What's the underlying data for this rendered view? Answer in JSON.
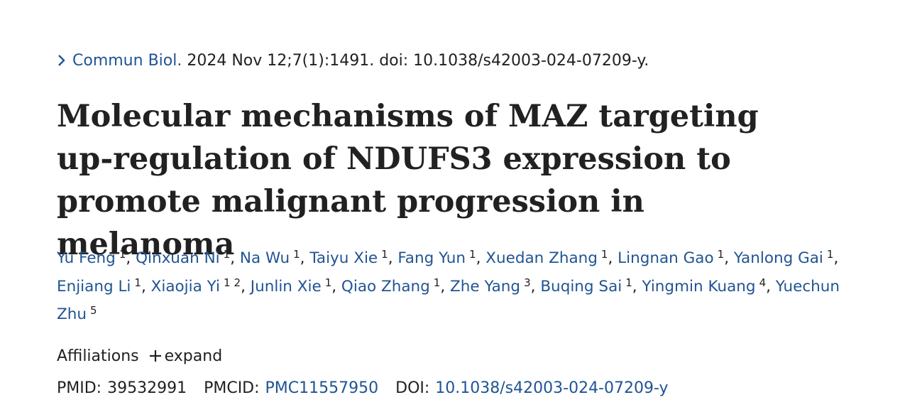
{
  "citation": {
    "journal": "Commun Biol.",
    "details": "2024 Nov 12;7(1):1491. doi: 10.1038/s42003-024-07209-y."
  },
  "title": "Molecular mechanisms of MAZ targeting up-regulation of NDUFS3 expression to promote malignant progression in melanoma",
  "author_separator": ",",
  "authors": [
    {
      "name": "Yu Feng",
      "affiliations": [
        1
      ]
    },
    {
      "name": "Qinxuan Ni",
      "affiliations": [
        1
      ]
    },
    {
      "name": "Na Wu",
      "affiliations": [
        1
      ]
    },
    {
      "name": "Taiyu Xie",
      "affiliations": [
        1
      ]
    },
    {
      "name": "Fang Yun",
      "affiliations": [
        1
      ]
    },
    {
      "name": "Xuedan Zhang",
      "affiliations": [
        1
      ]
    },
    {
      "name": "Lingnan Gao",
      "affiliations": [
        1
      ]
    },
    {
      "name": "Yanlong Gai",
      "affiliations": [
        1
      ]
    },
    {
      "name": "Enjiang Li",
      "affiliations": [
        1
      ]
    },
    {
      "name": "Xiaojia Yi",
      "affiliations": [
        1,
        2
      ]
    },
    {
      "name": "Junlin Xie",
      "affiliations": [
        1
      ]
    },
    {
      "name": "Qiao Zhang",
      "affiliations": [
        1
      ]
    },
    {
      "name": "Zhe Yang",
      "affiliations": [
        3
      ]
    },
    {
      "name": "Buqing Sai",
      "affiliations": [
        1
      ]
    },
    {
      "name": "Yingmin Kuang",
      "affiliations": [
        4
      ]
    },
    {
      "name": "Yuechun Zhu",
      "affiliations": [
        5
      ]
    }
  ],
  "affiliations": {
    "label": "Affiliations",
    "toggle": "expand"
  },
  "identifiers": {
    "pmid_label": "PMID:",
    "pmid": "39532991",
    "pmcid_label": "PMCID:",
    "pmcid": "PMC11557950",
    "doi_label": "DOI:",
    "doi": "10.1038/s42003-024-07209-y"
  }
}
